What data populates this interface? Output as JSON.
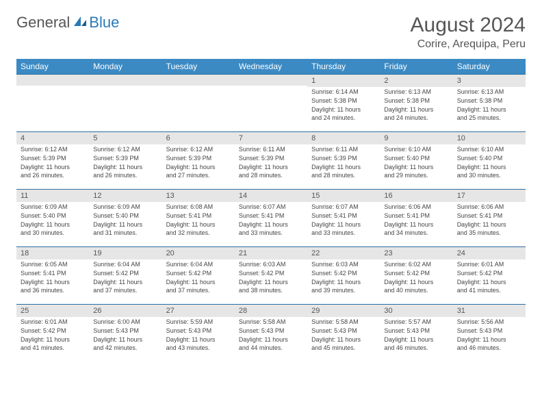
{
  "logo": {
    "general": "General",
    "blue": "Blue"
  },
  "title": "August 2024",
  "location": "Corire, Arequipa, Peru",
  "colors": {
    "header_bg": "#3b8ac4",
    "header_text": "#ffffff",
    "daynum_bg": "#e6e6e6",
    "border": "#2a6ca0",
    "text": "#444444",
    "logo_blue": "#2a7ab8"
  },
  "weekdays": [
    "Sunday",
    "Monday",
    "Tuesday",
    "Wednesday",
    "Thursday",
    "Friday",
    "Saturday"
  ],
  "weeks": [
    [
      null,
      null,
      null,
      null,
      {
        "n": "1",
        "rise": "Sunrise: 6:14 AM",
        "set": "Sunset: 5:38 PM",
        "dl1": "Daylight: 11 hours",
        "dl2": "and 24 minutes."
      },
      {
        "n": "2",
        "rise": "Sunrise: 6:13 AM",
        "set": "Sunset: 5:38 PM",
        "dl1": "Daylight: 11 hours",
        "dl2": "and 24 minutes."
      },
      {
        "n": "3",
        "rise": "Sunrise: 6:13 AM",
        "set": "Sunset: 5:38 PM",
        "dl1": "Daylight: 11 hours",
        "dl2": "and 25 minutes."
      }
    ],
    [
      {
        "n": "4",
        "rise": "Sunrise: 6:12 AM",
        "set": "Sunset: 5:39 PM",
        "dl1": "Daylight: 11 hours",
        "dl2": "and 26 minutes."
      },
      {
        "n": "5",
        "rise": "Sunrise: 6:12 AM",
        "set": "Sunset: 5:39 PM",
        "dl1": "Daylight: 11 hours",
        "dl2": "and 26 minutes."
      },
      {
        "n": "6",
        "rise": "Sunrise: 6:12 AM",
        "set": "Sunset: 5:39 PM",
        "dl1": "Daylight: 11 hours",
        "dl2": "and 27 minutes."
      },
      {
        "n": "7",
        "rise": "Sunrise: 6:11 AM",
        "set": "Sunset: 5:39 PM",
        "dl1": "Daylight: 11 hours",
        "dl2": "and 28 minutes."
      },
      {
        "n": "8",
        "rise": "Sunrise: 6:11 AM",
        "set": "Sunset: 5:39 PM",
        "dl1": "Daylight: 11 hours",
        "dl2": "and 28 minutes."
      },
      {
        "n": "9",
        "rise": "Sunrise: 6:10 AM",
        "set": "Sunset: 5:40 PM",
        "dl1": "Daylight: 11 hours",
        "dl2": "and 29 minutes."
      },
      {
        "n": "10",
        "rise": "Sunrise: 6:10 AM",
        "set": "Sunset: 5:40 PM",
        "dl1": "Daylight: 11 hours",
        "dl2": "and 30 minutes."
      }
    ],
    [
      {
        "n": "11",
        "rise": "Sunrise: 6:09 AM",
        "set": "Sunset: 5:40 PM",
        "dl1": "Daylight: 11 hours",
        "dl2": "and 30 minutes."
      },
      {
        "n": "12",
        "rise": "Sunrise: 6:09 AM",
        "set": "Sunset: 5:40 PM",
        "dl1": "Daylight: 11 hours",
        "dl2": "and 31 minutes."
      },
      {
        "n": "13",
        "rise": "Sunrise: 6:08 AM",
        "set": "Sunset: 5:41 PM",
        "dl1": "Daylight: 11 hours",
        "dl2": "and 32 minutes."
      },
      {
        "n": "14",
        "rise": "Sunrise: 6:07 AM",
        "set": "Sunset: 5:41 PM",
        "dl1": "Daylight: 11 hours",
        "dl2": "and 33 minutes."
      },
      {
        "n": "15",
        "rise": "Sunrise: 6:07 AM",
        "set": "Sunset: 5:41 PM",
        "dl1": "Daylight: 11 hours",
        "dl2": "and 33 minutes."
      },
      {
        "n": "16",
        "rise": "Sunrise: 6:06 AM",
        "set": "Sunset: 5:41 PM",
        "dl1": "Daylight: 11 hours",
        "dl2": "and 34 minutes."
      },
      {
        "n": "17",
        "rise": "Sunrise: 6:06 AM",
        "set": "Sunset: 5:41 PM",
        "dl1": "Daylight: 11 hours",
        "dl2": "and 35 minutes."
      }
    ],
    [
      {
        "n": "18",
        "rise": "Sunrise: 6:05 AM",
        "set": "Sunset: 5:41 PM",
        "dl1": "Daylight: 11 hours",
        "dl2": "and 36 minutes."
      },
      {
        "n": "19",
        "rise": "Sunrise: 6:04 AM",
        "set": "Sunset: 5:42 PM",
        "dl1": "Daylight: 11 hours",
        "dl2": "and 37 minutes."
      },
      {
        "n": "20",
        "rise": "Sunrise: 6:04 AM",
        "set": "Sunset: 5:42 PM",
        "dl1": "Daylight: 11 hours",
        "dl2": "and 37 minutes."
      },
      {
        "n": "21",
        "rise": "Sunrise: 6:03 AM",
        "set": "Sunset: 5:42 PM",
        "dl1": "Daylight: 11 hours",
        "dl2": "and 38 minutes."
      },
      {
        "n": "22",
        "rise": "Sunrise: 6:03 AM",
        "set": "Sunset: 5:42 PM",
        "dl1": "Daylight: 11 hours",
        "dl2": "and 39 minutes."
      },
      {
        "n": "23",
        "rise": "Sunrise: 6:02 AM",
        "set": "Sunset: 5:42 PM",
        "dl1": "Daylight: 11 hours",
        "dl2": "and 40 minutes."
      },
      {
        "n": "24",
        "rise": "Sunrise: 6:01 AM",
        "set": "Sunset: 5:42 PM",
        "dl1": "Daylight: 11 hours",
        "dl2": "and 41 minutes."
      }
    ],
    [
      {
        "n": "25",
        "rise": "Sunrise: 6:01 AM",
        "set": "Sunset: 5:42 PM",
        "dl1": "Daylight: 11 hours",
        "dl2": "and 41 minutes."
      },
      {
        "n": "26",
        "rise": "Sunrise: 6:00 AM",
        "set": "Sunset: 5:43 PM",
        "dl1": "Daylight: 11 hours",
        "dl2": "and 42 minutes."
      },
      {
        "n": "27",
        "rise": "Sunrise: 5:59 AM",
        "set": "Sunset: 5:43 PM",
        "dl1": "Daylight: 11 hours",
        "dl2": "and 43 minutes."
      },
      {
        "n": "28",
        "rise": "Sunrise: 5:58 AM",
        "set": "Sunset: 5:43 PM",
        "dl1": "Daylight: 11 hours",
        "dl2": "and 44 minutes."
      },
      {
        "n": "29",
        "rise": "Sunrise: 5:58 AM",
        "set": "Sunset: 5:43 PM",
        "dl1": "Daylight: 11 hours",
        "dl2": "and 45 minutes."
      },
      {
        "n": "30",
        "rise": "Sunrise: 5:57 AM",
        "set": "Sunset: 5:43 PM",
        "dl1": "Daylight: 11 hours",
        "dl2": "and 46 minutes."
      },
      {
        "n": "31",
        "rise": "Sunrise: 5:56 AM",
        "set": "Sunset: 5:43 PM",
        "dl1": "Daylight: 11 hours",
        "dl2": "and 46 minutes."
      }
    ]
  ]
}
